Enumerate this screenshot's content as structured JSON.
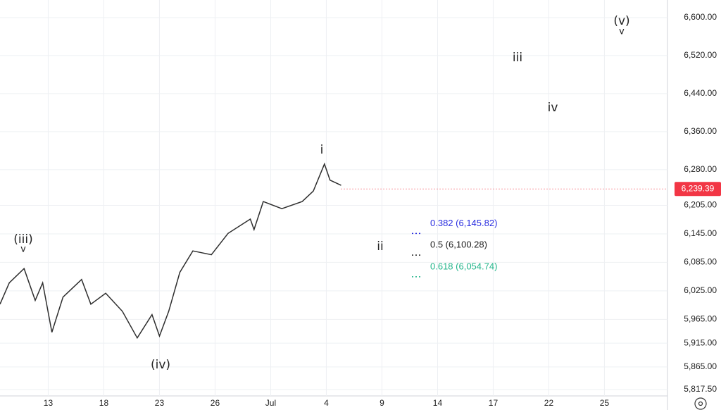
{
  "chart_data": {
    "type": "line",
    "x": [
      -2.6,
      -2.1,
      -1.3,
      -0.7,
      -0.3,
      0.2,
      0.8,
      1.8,
      2.3,
      3.1,
      4.0,
      4.8,
      5.6,
      6.0,
      6.5,
      7.1,
      7.8,
      8.8,
      9.7,
      10.9,
      11.1,
      11.6,
      12.6,
      13.7,
      14.3,
      14.9,
      15.2,
      15.8
    ],
    "values": [
      5997,
      6042,
      6072,
      6005,
      6042,
      5938,
      6012,
      6049,
      5997,
      6020,
      5982,
      5926,
      5975,
      5930,
      5982,
      6064,
      6109,
      6101,
      6146,
      6176,
      6154,
      6213,
      6198,
      6213,
      6235,
      6292,
      6258,
      6247
    ],
    "color": "#2e2e2e",
    "xlim": [
      -2.6,
      33.4
    ],
    "xticks": [
      {
        "value": 0,
        "label": "13"
      },
      {
        "value": 3,
        "label": "18"
      },
      {
        "value": 6,
        "label": "23"
      },
      {
        "value": 9,
        "label": "26"
      },
      {
        "value": 12,
        "label": "Jul"
      },
      {
        "value": 15,
        "label": "4"
      },
      {
        "value": 18,
        "label": "9"
      },
      {
        "value": 21,
        "label": "14"
      },
      {
        "value": 24,
        "label": "17"
      },
      {
        "value": 27,
        "label": "22"
      },
      {
        "value": 30,
        "label": "25"
      }
    ],
    "ylim": [
      5804,
      6637
    ],
    "yticks": [
      {
        "value": 5817.5,
        "label": "5,817.50"
      },
      {
        "value": 5865,
        "label": "5,865.00"
      },
      {
        "value": 5915,
        "label": "5,915.00"
      },
      {
        "value": 5965,
        "label": "5,965.00"
      },
      {
        "value": 6025,
        "label": "6,025.00"
      },
      {
        "value": 6085,
        "label": "6,085.00"
      },
      {
        "value": 6145,
        "label": "6,145.00"
      },
      {
        "value": 6205,
        "label": "6,205.00"
      },
      {
        "value": 6280,
        "label": "6,280.00"
      },
      {
        "value": 6360,
        "label": "6,360.00"
      },
      {
        "value": 6440,
        "label": "6,440.00"
      },
      {
        "value": 6520,
        "label": "6,520.00"
      },
      {
        "value": 6600,
        "label": "6,600.00"
      }
    ],
    "grid": true,
    "last_price": {
      "value": 6239.39,
      "label": "6,239.39",
      "color": "#f23645"
    },
    "fib_levels": [
      {
        "value": 6145.82,
        "label": "0.382 (6,145.82)",
        "color": "#2a2ee0"
      },
      {
        "value": 6100.28,
        "label": "0.5 (6,100.28)",
        "color": "#222222"
      },
      {
        "value": 6054.74,
        "label": "0.618 (6,054.74)",
        "color": "#22b58a"
      }
    ],
    "annotations": [
      "(iii)",
      "v",
      "(iv)",
      "i",
      "ii",
      "iii",
      "iv",
      "(v)",
      "v"
    ]
  }
}
